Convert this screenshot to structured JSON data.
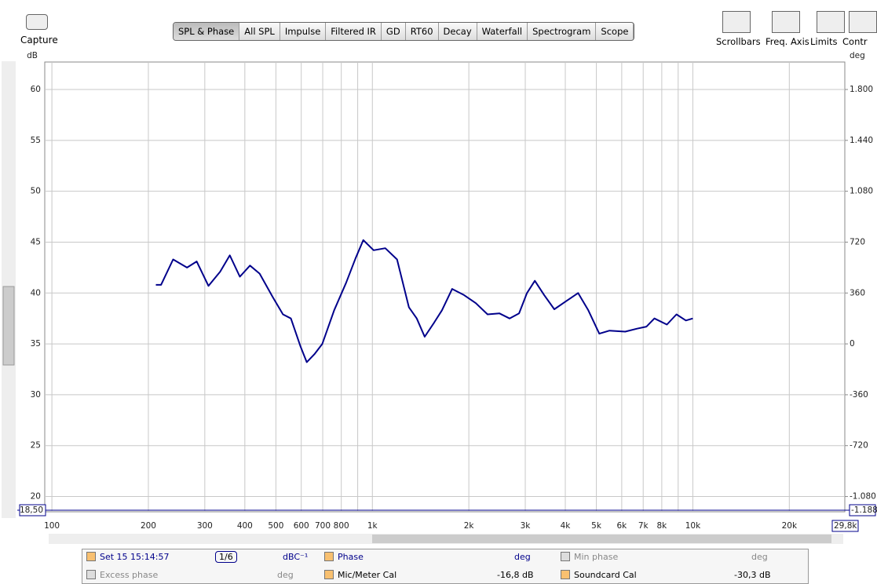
{
  "toolbar": {
    "capture": "Capture",
    "tabs": [
      "SPL & Phase",
      "All SPL",
      "Impulse",
      "Filtered IR",
      "GD",
      "RT60",
      "Decay",
      "Waterfall",
      "Spectrogram",
      "Scope"
    ],
    "right_buttons": [
      "Scrollbars",
      "Freq. Axis",
      "Limits",
      "Contr"
    ]
  },
  "chart_data": {
    "type": "line",
    "y_unit": "dB",
    "y2_unit": "deg",
    "xscale": "log",
    "grid": true,
    "x": [
      211,
      219,
      239,
      264,
      283,
      308,
      335,
      359,
      386,
      415,
      445,
      489,
      526,
      557,
      596,
      624,
      660,
      698,
      760,
      828,
      886,
      937,
      1009,
      1097,
      1194,
      1300,
      1376,
      1456,
      1559,
      1649,
      1774,
      1932,
      2103,
      2288,
      2490,
      2679,
      2869,
      3037,
      3213,
      3436,
      3697,
      4026,
      4385,
      4720,
      5106,
      5496,
      6150,
      6697,
      7166,
      7586,
      8300,
      8892,
      9513,
      10000
    ],
    "series": [
      {
        "name": "Set 15 15:14:57",
        "color": "#00008b",
        "values": [
          40.8,
          40.8,
          43.3,
          42.5,
          43.1,
          40.7,
          42.1,
          43.7,
          41.6,
          42.7,
          41.9,
          39.6,
          37.9,
          37.5,
          34.8,
          33.2,
          34.0,
          35.0,
          38.3,
          41.0,
          43.4,
          45.2,
          44.2,
          44.4,
          43.3,
          38.6,
          37.5,
          35.7,
          37.1,
          38.3,
          40.4,
          39.8,
          39.0,
          37.9,
          38.0,
          37.5,
          38.0,
          40.0,
          41.2,
          39.8,
          38.4,
          39.2,
          40.0,
          38.3,
          36.0,
          36.3,
          36.2,
          36.5,
          36.7,
          37.5,
          36.9,
          37.9,
          37.3,
          37.5
        ]
      }
    ],
    "xlim": [
      95,
      29800
    ],
    "ylim": [
      18.5,
      62.7
    ],
    "y2lim": [
      -1188,
      1994.4
    ],
    "xticks": [
      100,
      200,
      300,
      400,
      500,
      600,
      700,
      800,
      {
        "value": 1000,
        "label": "1k"
      },
      {
        "value": 2000,
        "label": "2k"
      },
      {
        "value": 3000,
        "label": "3k"
      },
      {
        "value": 4000,
        "label": "4k"
      },
      {
        "value": 5000,
        "label": "5k"
      },
      {
        "value": 6000,
        "label": "6k"
      },
      {
        "value": 7000,
        "label": "7k"
      },
      {
        "value": 8000,
        "label": "8k"
      },
      {
        "value": 10000,
        "label": "10k"
      },
      {
        "value": 20000,
        "label": "20k"
      }
    ],
    "xminor": [
      900,
      9000
    ],
    "yticks": [
      20,
      25,
      30,
      35,
      40,
      45,
      50,
      55,
      60
    ],
    "y2ticks": [
      {
        "value": -1080,
        "label": "-1.080"
      },
      -720,
      -360,
      0,
      360,
      720,
      {
        "value": 1080,
        "label": "1.080"
      },
      {
        "value": 1440,
        "label": "1.440"
      },
      {
        "value": 1800,
        "label": "1.800"
      }
    ],
    "xlim_label": "29,8k",
    "ylim_label": "18,50",
    "y2lim_label": "-1.188"
  },
  "legend_panel": {
    "smoothing": "1/6",
    "unit": "dBC⁻¹",
    "phase": "Phase",
    "phase_unit": "deg",
    "min_phase": "Min phase",
    "min_phase_unit": "deg",
    "excess_phase": "Excess phase",
    "excess_phase_unit": "deg",
    "mic_cal": "Mic/Meter Cal",
    "mic_cal_value": "-16,8 dB",
    "soundcard_cal": "Soundcard Cal",
    "soundcard_cal_value": "-30,3 dB"
  }
}
